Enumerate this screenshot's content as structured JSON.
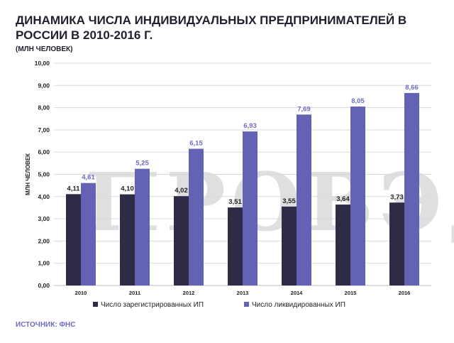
{
  "title": "ДИНАМИКА ЧИСЛА ИНДИВИДУАЛЬНЫХ ПРЕДПРИНИМАТЕЛЕЙ В РОССИИ В 2010-2016 Г.",
  "subtitle": "(МЛН ЧЕЛОВЕК)",
  "source": "ИСТОЧНИК: ФНС",
  "watermark": "ПРОВЭД",
  "colors": {
    "registered": "#2d2b46",
    "liquidated": "#6462b4",
    "liquidated_label": "#6d6cc0",
    "grid": "#d9d9d9"
  },
  "chart_data": {
    "type": "bar",
    "categories": [
      "2010",
      "2011",
      "2012",
      "2013",
      "2014",
      "2015",
      "2016"
    ],
    "series": [
      {
        "name": "Число зарегистрированных ИП",
        "values": [
          4.11,
          4.1,
          4.02,
          3.51,
          3.55,
          3.64,
          3.73
        ],
        "labels": [
          "4,11",
          "4,10",
          "4,02",
          "3,51",
          "3,55",
          "3,64",
          "3,73"
        ]
      },
      {
        "name": "Число ликвидированных ИП",
        "values": [
          4.61,
          5.25,
          6.15,
          6.93,
          7.69,
          8.05,
          8.66
        ],
        "labels": [
          "4,61",
          "5,25",
          "6,15",
          "6,93",
          "7,69",
          "8,05",
          "8,66"
        ]
      }
    ],
    "ylabel": "МЛН ЧЕЛОВЕК",
    "ylim": [
      0,
      10
    ],
    "yticks": [
      0,
      1,
      2,
      3,
      4,
      5,
      6,
      7,
      8,
      9,
      10
    ],
    "yticklabels": [
      "0,00",
      "1,00",
      "2,00",
      "3,00",
      "4,00",
      "5,00",
      "6,00",
      "7,00",
      "8,00",
      "9,00",
      "10,00"
    ],
    "grid": true,
    "legend_position": "bottom"
  }
}
